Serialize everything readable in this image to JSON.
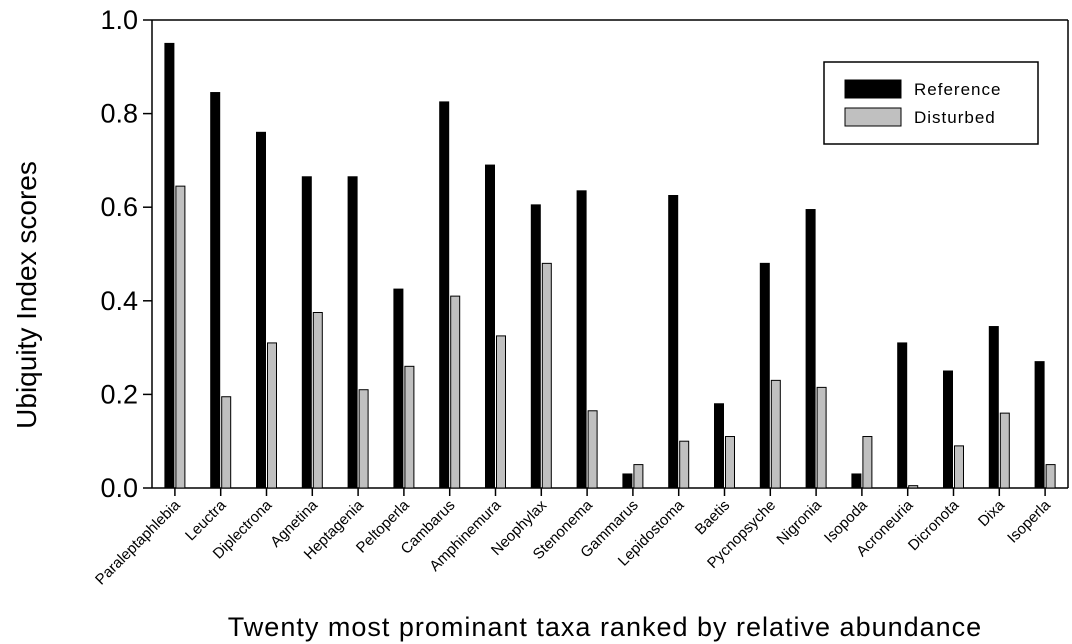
{
  "chart_data": {
    "type": "bar",
    "title": "",
    "xlabel": "Twenty most prominant taxa ranked by relative abundance",
    "ylabel": "Ubiquity Index scores",
    "ylim": [
      0,
      1.0
    ],
    "yticks": [
      "0.0",
      "0.2",
      "0.4",
      "0.6",
      "0.8",
      "1.0"
    ],
    "grid": false,
    "legend_position": "top-right",
    "categories": [
      "Paraleptaphlebia",
      "Leuctra",
      "Diplectrona",
      "Agnetina",
      "Heptagenia",
      "Peltoperla",
      "Cambarus",
      "Amphinemura",
      "Neophylax",
      "Stenonema",
      "Gammarus",
      "Lepidostoma",
      "Baetis",
      "Pycnopsyche",
      "Nigronia",
      "Isopoda",
      "Acroneuria",
      "Dicronota",
      "Dixa",
      "Isoperla"
    ],
    "series": [
      {
        "name": "Reference",
        "color": "#000000",
        "values": [
          0.95,
          0.845,
          0.76,
          0.665,
          0.665,
          0.425,
          0.825,
          0.69,
          0.605,
          0.635,
          0.03,
          0.625,
          0.18,
          0.48,
          0.595,
          0.03,
          0.31,
          0.25,
          0.345,
          0.27
        ]
      },
      {
        "name": "Disturbed",
        "color": "#c0c0c0",
        "values": [
          0.645,
          0.195,
          0.31,
          0.375,
          0.21,
          0.26,
          0.41,
          0.325,
          0.48,
          0.165,
          0.05,
          0.1,
          0.11,
          0.23,
          0.215,
          0.11,
          0.005,
          0.09,
          0.16,
          0.05
        ]
      }
    ]
  }
}
